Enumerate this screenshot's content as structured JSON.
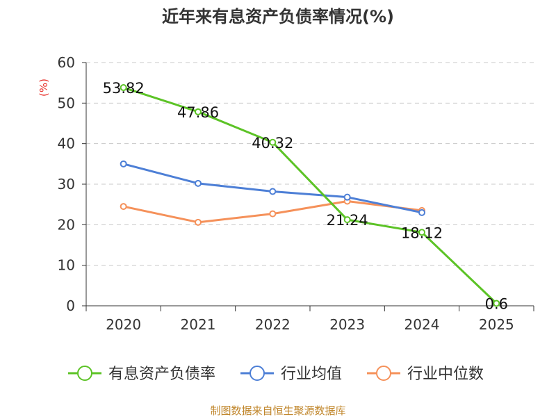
{
  "chart_data": {
    "type": "line",
    "title": "近年来有息资产负债率情况(%)",
    "ylabel": "(%)",
    "xlabel": "",
    "categories": [
      "2020",
      "2021",
      "2022",
      "2023",
      "2024",
      "2025"
    ],
    "ylim": [
      0,
      60
    ],
    "yticks": [
      0,
      10,
      20,
      30,
      40,
      50,
      60
    ],
    "grid": true,
    "legend_position": "bottom",
    "series": [
      {
        "name": "有息资产负债率",
        "color": "#5cc326",
        "values": [
          53.82,
          47.86,
          40.32,
          21.24,
          18.12,
          0.6
        ],
        "labels": [
          "53.82",
          "47.86",
          "40.32",
          "21.24",
          "18.12",
          "0.6"
        ]
      },
      {
        "name": "行业均值",
        "color": "#4d7fd6",
        "values": [
          35.0,
          30.2,
          28.2,
          26.8,
          23.0,
          null
        ]
      },
      {
        "name": "行业中位数",
        "color": "#f5915a",
        "values": [
          24.5,
          20.6,
          22.7,
          25.8,
          23.5,
          null
        ]
      }
    ],
    "source": "制图数据来自恒生聚源数据库"
  }
}
